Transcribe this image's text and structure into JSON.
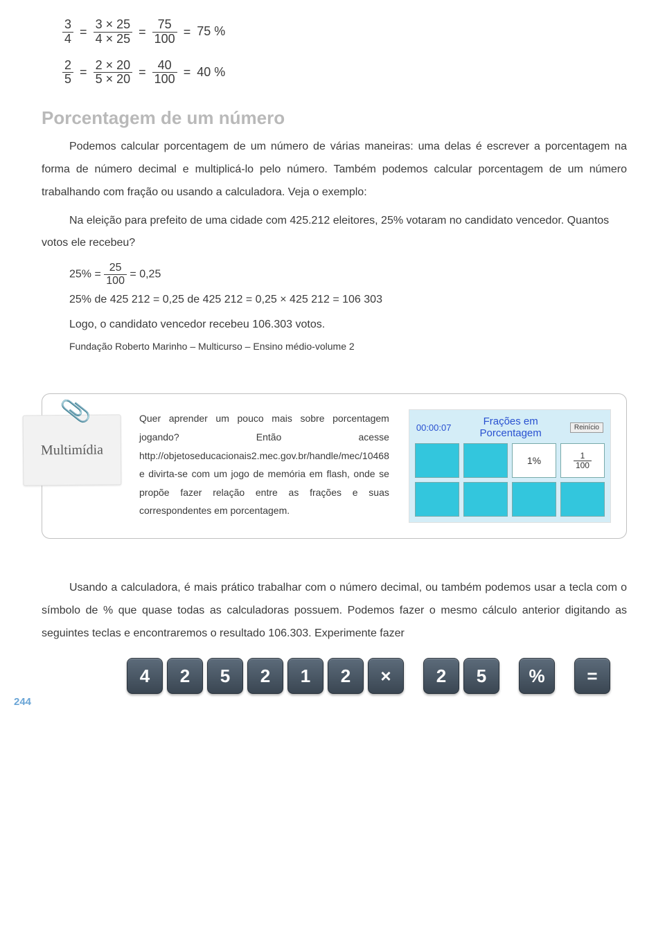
{
  "eq1": {
    "a_num": "3",
    "a_den": "4",
    "b_num": "3 × 25",
    "b_den": "4 × 25",
    "c_num": "75",
    "c_den": "100",
    "res": "75 %"
  },
  "eq2": {
    "a_num": "2",
    "a_den": "5",
    "b_num": "2 × 20",
    "b_den": "5 × 20",
    "c_num": "40",
    "c_den": "100",
    "res": "40 %"
  },
  "section_title": "Porcentagem de um número",
  "p1": "Podemos calcular porcentagem de um número de várias maneiras: uma delas é escrever a porcentagem na forma de número decimal e multiplicá-lo pelo número. Também podemos calcular porcentagem de um número trabalhando com fração ou usando a calculadora. Veja o exemplo:",
  "p2_a": "Na eleição para prefeito de uma cidade com 425.212 eleitores, 25% votaram no candidato vencedor. Quantos",
  "p2_b": "votos ele recebeu?",
  "eq3_pre": "25% = ",
  "eq3_num": "25",
  "eq3_den": "100",
  "eq3_post": " = 0,25",
  "calc_line": "25% de 425 212 = 0,25 de 425 212 = 0,25 × 425 212 = 106 303",
  "logo_line": "Logo, o candidato vencedor recebeu 106.303 votos.",
  "src_line": "Fundação Roberto Marinho – Multicurso – Ensino médio-volume 2",
  "note_label": "Multimídia",
  "multitext": "Quer aprender um pouco mais sobre porcentagem jogando? Então acesse http://objetoseducacionais2.mec.gov.br/handle/mec/10468 e divirta-se com um jogo de memória em flash, onde se propõe fazer relação entre as frações e suas correspondentes em porcentagem.",
  "game": {
    "timer": "00:00:07",
    "title": "Frações em Porcentagem",
    "restart": "Reinício",
    "tile_bg": "#33c6dd",
    "tile_open_bg": "#ffffff",
    "tiles": [
      {
        "open": false,
        "text": ""
      },
      {
        "open": false,
        "text": ""
      },
      {
        "open": true,
        "text": "1%"
      },
      {
        "open": true,
        "text": "1\n—\n100"
      },
      {
        "open": false,
        "text": ""
      },
      {
        "open": false,
        "text": ""
      },
      {
        "open": false,
        "text": ""
      },
      {
        "open": false,
        "text": ""
      }
    ]
  },
  "p3": "Usando a calculadora, é mais prático trabalhar com o número decimal, ou também podemos usar a tecla com o símbolo de % que quase todas as calculadoras possuem. Podemos fazer o mesmo cálculo anterior digitando as seguintes teclas e encontraremos o resultado 106.303. Experimente fazer",
  "keys": [
    "4",
    "2",
    "5",
    "2",
    "1",
    "2",
    "×",
    "",
    "2",
    "5",
    "",
    "%",
    "",
    "="
  ],
  "page_num": "244",
  "colors": {
    "section_gray": "#b9b9b9",
    "timer_color": "#2850d0",
    "pagenum_color": "#6aa5d6"
  }
}
